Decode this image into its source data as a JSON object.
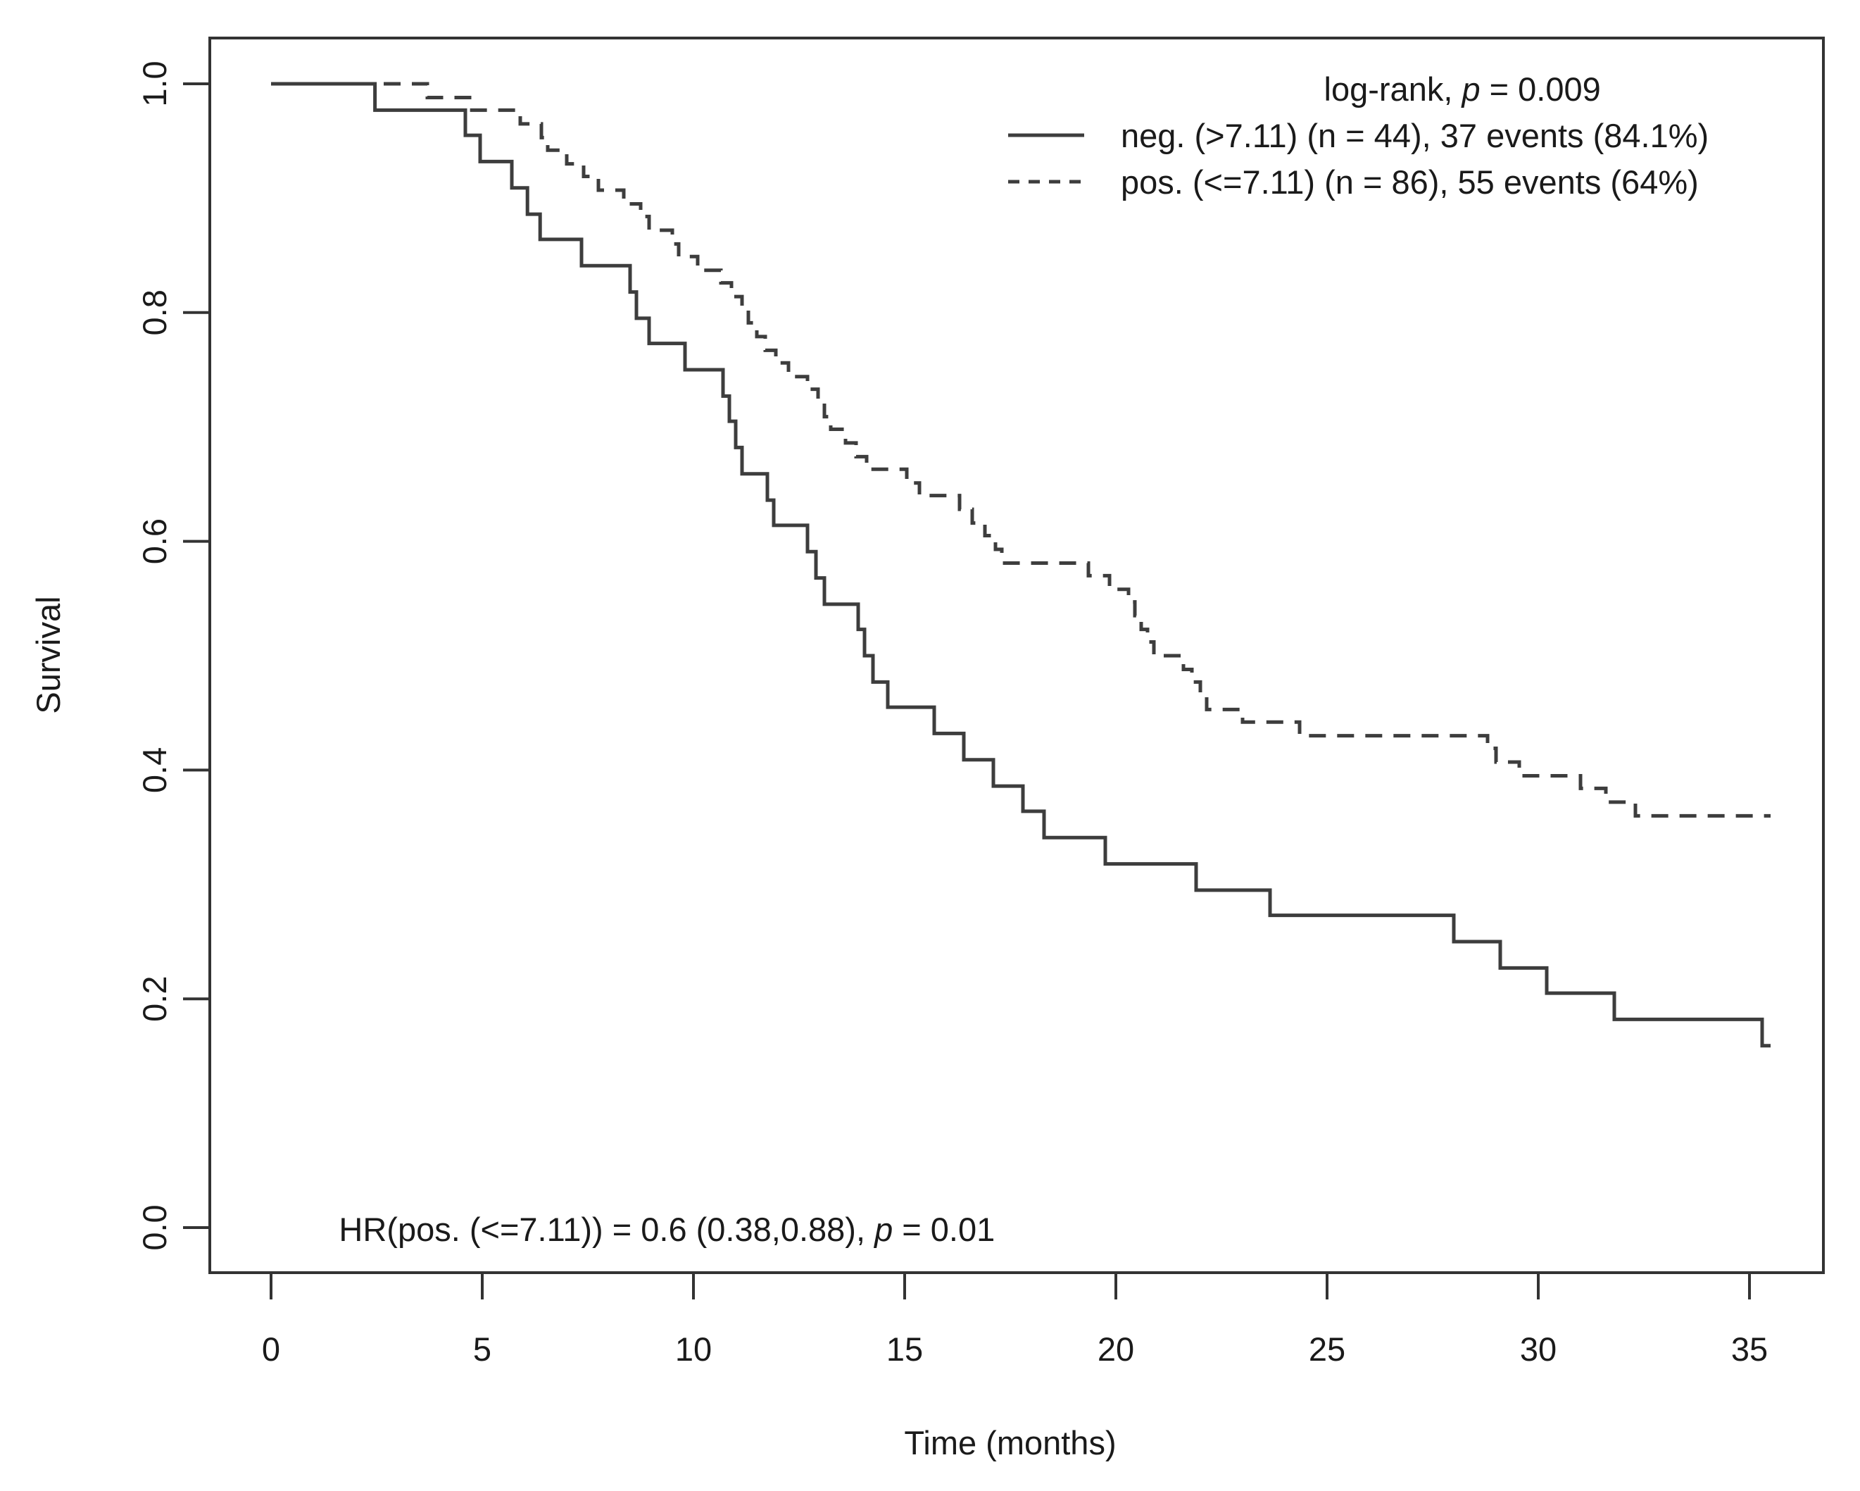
{
  "window": {
    "background": "#ffffff",
    "text_color": "#1a1a1a",
    "line_color": "#3d3d3d"
  },
  "chart_data": {
    "type": "line",
    "subtype": "kaplan-meier-step-plot",
    "title": "",
    "xlabel": "Time (months)",
    "ylabel": "Survival",
    "xlim": [
      0,
      36
    ],
    "ylim": [
      0.0,
      1.0
    ],
    "grid": false,
    "legend_position": "top-right",
    "x_ticks": [
      0,
      5,
      10,
      15,
      20,
      25,
      30,
      35
    ],
    "y_ticks": [
      "0.0",
      "0.2",
      "0.4",
      "0.6",
      "0.8",
      "1.0"
    ],
    "stat_label": {
      "prefix": "log-rank, ",
      "italic": "p",
      "suffix": " = 0.009"
    },
    "hr_label": {
      "prefix": "HR(pos. (<=7.11)) = 0.6 (0.38,0.88), ",
      "italic": "p",
      "suffix": " = 0.01"
    },
    "series": [
      {
        "name": "neg. (>7.11) (n = 44), 37 events (84.1%)",
        "group": "neg. (>7.11)",
        "n": 44,
        "events": 37,
        "events_pct": "84.1%",
        "line_style": "solid",
        "start": [
          0,
          1.0
        ],
        "end_time": 35.5,
        "steps": [
          [
            2.46,
            0.977
          ],
          [
            4.6,
            0.955
          ],
          [
            4.95,
            0.932
          ],
          [
            5.7,
            0.909
          ],
          [
            6.07,
            0.886
          ],
          [
            6.37,
            0.864
          ],
          [
            7.35,
            0.841
          ],
          [
            8.5,
            0.818
          ],
          [
            8.65,
            0.795
          ],
          [
            8.95,
            0.773
          ],
          [
            9.8,
            0.75
          ],
          [
            10.7,
            0.727
          ],
          [
            10.85,
            0.705
          ],
          [
            11.0,
            0.682
          ],
          [
            11.15,
            0.659
          ],
          [
            11.75,
            0.636
          ],
          [
            11.9,
            0.614
          ],
          [
            12.7,
            0.591
          ],
          [
            12.9,
            0.568
          ],
          [
            13.1,
            0.545
          ],
          [
            13.9,
            0.523
          ],
          [
            14.05,
            0.5
          ],
          [
            14.25,
            0.477
          ],
          [
            14.6,
            0.455
          ],
          [
            15.7,
            0.432
          ],
          [
            16.4,
            0.409
          ],
          [
            17.1,
            0.386
          ],
          [
            17.8,
            0.364
          ],
          [
            18.3,
            0.341
          ],
          [
            19.75,
            0.318
          ],
          [
            21.9,
            0.295
          ],
          [
            23.65,
            0.273
          ],
          [
            28.0,
            0.25
          ],
          [
            29.1,
            0.227
          ],
          [
            30.2,
            0.205
          ],
          [
            31.8,
            0.182
          ],
          [
            35.3,
            0.159
          ]
        ]
      },
      {
        "name": "pos. (<=7.11) (n = 86), 55 events (64%)",
        "group": "pos. (<=7.11)",
        "n": 86,
        "events": 55,
        "events_pct": "64%",
        "line_style": "dashed",
        "start": [
          0,
          1.0
        ],
        "end_time": 35.5,
        "steps": [
          [
            3.7,
            0.988
          ],
          [
            4.7,
            0.977
          ],
          [
            5.9,
            0.965
          ],
          [
            6.4,
            0.953
          ],
          [
            6.55,
            0.942
          ],
          [
            7.0,
            0.93
          ],
          [
            7.4,
            0.919
          ],
          [
            7.75,
            0.907
          ],
          [
            8.35,
            0.895
          ],
          [
            8.75,
            0.884
          ],
          [
            8.95,
            0.872
          ],
          [
            9.5,
            0.86
          ],
          [
            9.65,
            0.849
          ],
          [
            10.1,
            0.837
          ],
          [
            10.65,
            0.826
          ],
          [
            10.9,
            0.814
          ],
          [
            11.15,
            0.802
          ],
          [
            11.3,
            0.791
          ],
          [
            11.5,
            0.779
          ],
          [
            11.7,
            0.767
          ],
          [
            11.95,
            0.756
          ],
          [
            12.25,
            0.744
          ],
          [
            12.7,
            0.733
          ],
          [
            12.95,
            0.721
          ],
          [
            13.1,
            0.709
          ],
          [
            13.25,
            0.698
          ],
          [
            13.6,
            0.686
          ],
          [
            13.85,
            0.674
          ],
          [
            14.1,
            0.663
          ],
          [
            15.05,
            0.651
          ],
          [
            15.35,
            0.64
          ],
          [
            16.3,
            0.628
          ],
          [
            16.6,
            0.616
          ],
          [
            16.9,
            0.605
          ],
          [
            17.15,
            0.593
          ],
          [
            17.3,
            0.581
          ],
          [
            19.35,
            0.57
          ],
          [
            19.85,
            0.558
          ],
          [
            20.3,
            0.547
          ],
          [
            20.45,
            0.535
          ],
          [
            20.6,
            0.523
          ],
          [
            20.75,
            0.512
          ],
          [
            20.9,
            0.5
          ],
          [
            21.6,
            0.488
          ],
          [
            21.8,
            0.477
          ],
          [
            22.0,
            0.465
          ],
          [
            22.15,
            0.453
          ],
          [
            23.0,
            0.442
          ],
          [
            24.35,
            0.43
          ],
          [
            28.8,
            0.419
          ],
          [
            29.0,
            0.407
          ],
          [
            29.55,
            0.395
          ],
          [
            31.0,
            0.384
          ],
          [
            31.6,
            0.372
          ],
          [
            32.3,
            0.36
          ]
        ]
      }
    ]
  }
}
